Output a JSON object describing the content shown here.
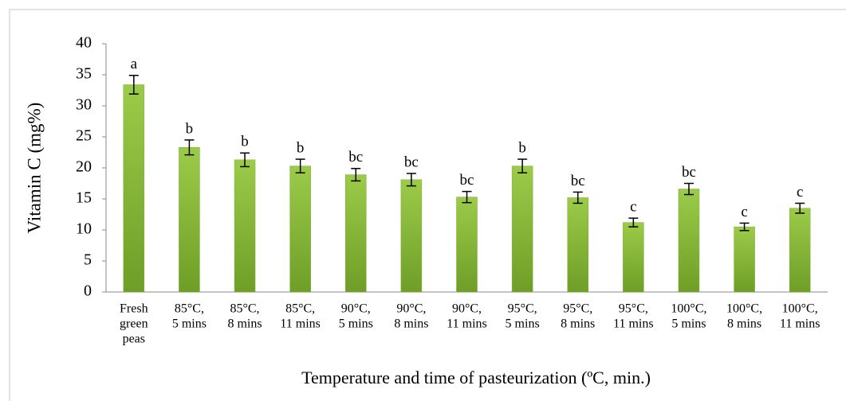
{
  "chart_data": {
    "type": "bar",
    "categories": [
      [
        "Fresh",
        "green",
        "peas"
      ],
      [
        "85°C,",
        "5 mins"
      ],
      [
        "85°C,",
        "8 mins"
      ],
      [
        "85°C,",
        "11 mins"
      ],
      [
        "90°C,",
        "5 mins"
      ],
      [
        "90°C,",
        "8 mins"
      ],
      [
        "90°C,",
        "11 mins"
      ],
      [
        "95°C,",
        "5 mins"
      ],
      [
        "95°C,",
        "8 mins"
      ],
      [
        "95°C,",
        "11 mins"
      ],
      [
        "100°C,",
        "5 mins"
      ],
      [
        "100°C,",
        "8 mins"
      ],
      [
        "100°C,",
        "11 mins"
      ]
    ],
    "values": [
      33.4,
      23.3,
      21.3,
      20.3,
      18.9,
      18.1,
      15.3,
      20.3,
      15.2,
      11.2,
      16.6,
      10.5,
      13.5
    ],
    "error": [
      1.5,
      1.2,
      1.1,
      1.1,
      1.0,
      1.0,
      0.9,
      1.1,
      0.9,
      0.7,
      0.9,
      0.6,
      0.8
    ],
    "annotations": [
      "a",
      "b",
      "b",
      "b",
      "bc",
      "bc",
      "bc",
      "b",
      "bc",
      "c",
      "bc",
      "c",
      "c"
    ],
    "color": "#7fae32",
    "ylabel": "Vitamin C (mg%)",
    "xlabel": "Temperature and time of pasteurization (ºC, min.)",
    "ylim": [
      0,
      40
    ],
    "yticks": [
      0,
      5,
      10,
      15,
      20,
      25,
      30,
      35,
      40
    ],
    "grid": false
  }
}
